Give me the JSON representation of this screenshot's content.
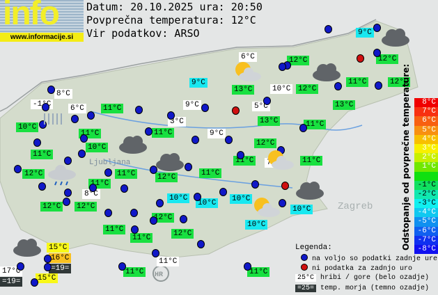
{
  "logo": {
    "text": "info",
    "url": "www.informacije.si"
  },
  "header": {
    "date": "Datum: 20.10.2025 ura: 20:50",
    "avg": "Povprečna temperatura: 12°C",
    "source": "Vir podatkov: ARSO"
  },
  "colors": {
    "green": "#18e040",
    "cyan": "#18e8f0",
    "white": "#ffffff",
    "yellow": "#f8f818",
    "orange": "#f8c020",
    "dark": "#303838",
    "dot_ok": "#1018c8",
    "dot_missing": "#d01010"
  },
  "stations": [
    {
      "t": "9°C",
      "c": "cyan"
    },
    {
      "t": "12°C",
      "c": "green"
    },
    {
      "t": "6°C",
      "c": "white"
    },
    {
      "t": "12°C",
      "c": "green"
    },
    {
      "t": "9°C",
      "c": "cyan"
    },
    {
      "t": "13°C",
      "c": "green"
    },
    {
      "t": "10°C",
      "c": "white"
    },
    {
      "t": "12°C",
      "c": "green"
    },
    {
      "t": "11°C",
      "c": "green"
    },
    {
      "t": "12°C",
      "c": "green"
    },
    {
      "t": "8°C",
      "c": "white"
    },
    {
      "t": "-1°C",
      "c": "white"
    },
    {
      "t": "6°C",
      "c": "white"
    },
    {
      "t": "11°C",
      "c": "green"
    },
    {
      "t": "9°C",
      "c": "white"
    },
    {
      "t": "5°C",
      "c": "white"
    },
    {
      "t": "13°C",
      "c": "green"
    },
    {
      "t": "10°C",
      "c": "green"
    },
    {
      "t": "11°C",
      "c": "green"
    },
    {
      "t": "3°C",
      "c": "white"
    },
    {
      "t": "11°C",
      "c": "green"
    },
    {
      "t": "13°C",
      "c": "green"
    },
    {
      "t": "11°C",
      "c": "green"
    },
    {
      "t": "9°C",
      "c": "white"
    },
    {
      "t": "10°C",
      "c": "green"
    },
    {
      "t": "12°C",
      "c": "green"
    },
    {
      "t": "11°C",
      "c": "green"
    },
    {
      "t": "11°C",
      "c": "green"
    },
    {
      "t": "7°C",
      "c": "white"
    },
    {
      "t": "11°C",
      "c": "green"
    },
    {
      "t": "12°C",
      "c": "green"
    },
    {
      "t": "11°C",
      "c": "green"
    },
    {
      "t": "12°C",
      "c": "green"
    },
    {
      "t": "11°C",
      "c": "green"
    },
    {
      "t": "11°C",
      "c": "green"
    },
    {
      "t": "8°C",
      "c": "white"
    },
    {
      "t": "10°C",
      "c": "cyan"
    },
    {
      "t": "10°C",
      "c": "cyan"
    },
    {
      "t": "10°C",
      "c": "cyan"
    },
    {
      "t": "12°C",
      "c": "green"
    },
    {
      "t": "12°C",
      "c": "green"
    },
    {
      "t": "12°C",
      "c": "green"
    },
    {
      "t": "10°C",
      "c": "cyan"
    },
    {
      "t": "10°C",
      "c": "cyan"
    },
    {
      "t": "11°C",
      "c": "green"
    },
    {
      "t": "11°C",
      "c": "green"
    },
    {
      "t": "12°C",
      "c": "green"
    },
    {
      "t": "15°C",
      "c": "yellow"
    },
    {
      "t": "16°C",
      "c": "orange"
    },
    {
      "t": "=19=",
      "c": "dark"
    },
    {
      "t": "17°C",
      "c": "white"
    },
    {
      "t": "=19=",
      "c": "dark"
    },
    {
      "t": "15°C",
      "c": "yellow"
    },
    {
      "t": "11°C",
      "c": "white"
    },
    {
      "t": "11°C",
      "c": "green"
    },
    {
      "t": "11°C",
      "c": "green"
    }
  ],
  "map_labels": {
    "ljubljana": "Ljubljana",
    "zagreb": "Zagreb",
    "hr": "HR"
  },
  "scale": {
    "title": "Odstopanje od povprečne temperature:",
    "steps": [
      {
        "t": "8°C",
        "c": "#f00000"
      },
      {
        "t": "7°C",
        "c": "#f83010"
      },
      {
        "t": "6°C",
        "c": "#f86010"
      },
      {
        "t": "5°C",
        "c": "#f89010"
      },
      {
        "t": "4°C",
        "c": "#f8c000"
      },
      {
        "t": "3°C",
        "c": "#f8f000"
      },
      {
        "t": "2°C",
        "c": "#c8f000"
      },
      {
        "t": "1°C",
        "c": "#70e800"
      },
      {
        "t": "",
        "c": "#10e010"
      },
      {
        "t": "-1°C",
        "c": "#10e060"
      },
      {
        "t": "-2°C",
        "c": "#10e8b0"
      },
      {
        "t": "-3°C",
        "c": "#10f0f0"
      },
      {
        "t": "-4°C",
        "c": "#10c8f0"
      },
      {
        "t": "-5°C",
        "c": "#1090f0"
      },
      {
        "t": "-6°C",
        "c": "#1060f0"
      },
      {
        "t": "-7°C",
        "c": "#1030f0"
      },
      {
        "t": "-8°C",
        "c": "#1010f0"
      }
    ]
  },
  "legend": {
    "title": "Legenda:",
    "ok": "na voljo so podatki zadnje ure",
    "missing": "ni podatka za zadnjo uro",
    "hill_sample": "25°C",
    "hill": "hribi / gore (belo ozadje)",
    "sea_sample": "=25=",
    "sea": "temp. morja (temno ozadje)"
  }
}
